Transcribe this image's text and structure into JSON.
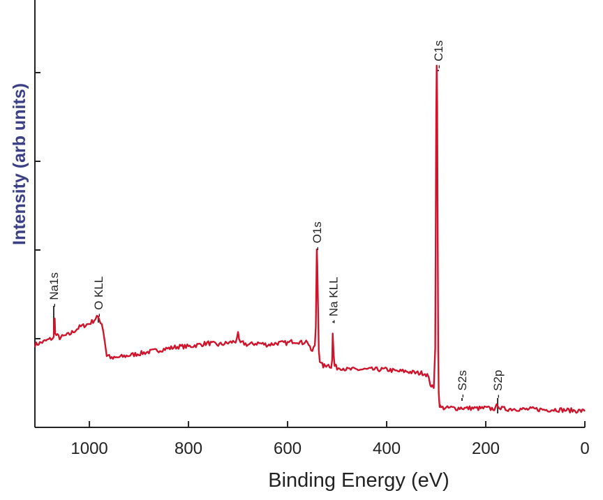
{
  "chart_data": {
    "type": "line",
    "title": "",
    "xlabel": "Binding Energy (eV)",
    "ylabel": "Intensity (arb units)",
    "xlim": [
      1110,
      0
    ],
    "ylim": [
      0,
      100
    ],
    "x_reversed": true,
    "grid": false,
    "xticks": [
      1000,
      800,
      600,
      400,
      200,
      0
    ],
    "xtick_labels": [
      "1000",
      "800",
      "600",
      "400",
      "200",
      "0"
    ],
    "ytick_count": 5,
    "colors": {
      "line": "#d0142c",
      "axis": "#222222",
      "ylabel": "#3b3f86"
    },
    "series": [
      {
        "color": "#d0142c",
        "x": [
          1110,
          1090,
          1072,
          1071,
          1070,
          1069,
          1060,
          1040,
          1020,
          1000,
          990,
          985,
          980,
          975,
          972,
          968,
          965,
          960,
          955,
          940,
          920,
          900,
          880,
          860,
          840,
          820,
          800,
          780,
          760,
          740,
          720,
          705,
          700,
          698,
          695,
          690,
          680,
          660,
          640,
          620,
          600,
          590,
          580,
          570,
          565,
          560,
          555,
          550,
          545,
          543,
          541,
          540,
          539,
          537,
          535,
          532,
          528,
          524,
          520,
          515,
          512,
          510,
          509,
          507,
          505,
          500,
          490,
          480,
          460,
          440,
          420,
          400,
          380,
          360,
          340,
          325,
          318,
          312,
          308,
          305,
          302,
          300,
          299,
          298,
          297,
          296,
          295,
          294,
          293,
          292,
          290,
          287,
          283,
          280,
          270,
          260,
          250,
          240,
          230,
          220,
          210,
          200,
          190,
          180,
          176,
          170,
          160,
          140,
          120,
          100,
          80,
          60,
          40,
          20,
          0
        ],
        "y": [
          21,
          22,
          23,
          28,
          29,
          24,
          23,
          24,
          26,
          27,
          28,
          29,
          28,
          27,
          25,
          21,
          18,
          18,
          17,
          17.5,
          18,
          18.5,
          19,
          19.5,
          20,
          20.5,
          20.5,
          21,
          21.5,
          21,
          21.5,
          22,
          24,
          22,
          21.5,
          21.5,
          21,
          21.5,
          21,
          21.5,
          21.5,
          22,
          22,
          21.5,
          22,
          22,
          20,
          19,
          21,
          26,
          48,
          44,
          35,
          20,
          16.5,
          15.5,
          15,
          15,
          15.5,
          15,
          15,
          17,
          24,
          18,
          15,
          14.5,
          14.5,
          14,
          14,
          14,
          14,
          14,
          13.5,
          13.5,
          13,
          13,
          12.5,
          10,
          9,
          8.5,
          20,
          85,
          100,
          90,
          50,
          20,
          8,
          5,
          4,
          3.5,
          3.2,
          3.2,
          3.1,
          3,
          3.2,
          3,
          3.2,
          3,
          3.1,
          3,
          3,
          3.1,
          2.9,
          3,
          4.2,
          3,
          2.8,
          2.9,
          2.7,
          2.8,
          2.6,
          2.7,
          2.5,
          2.4,
          2.2
        ]
      }
    ],
    "annotations": [
      {
        "text": "Na1s",
        "x": 1072
      },
      {
        "text": "O KLL",
        "x": 982
      },
      {
        "text": "O1s",
        "x": 541
      },
      {
        "text": "Na KLL",
        "x": 508
      },
      {
        "text": "C1s",
        "x": 296
      },
      {
        "text": "S2s",
        "x": 248
      },
      {
        "text": "S2p",
        "x": 176
      }
    ]
  }
}
